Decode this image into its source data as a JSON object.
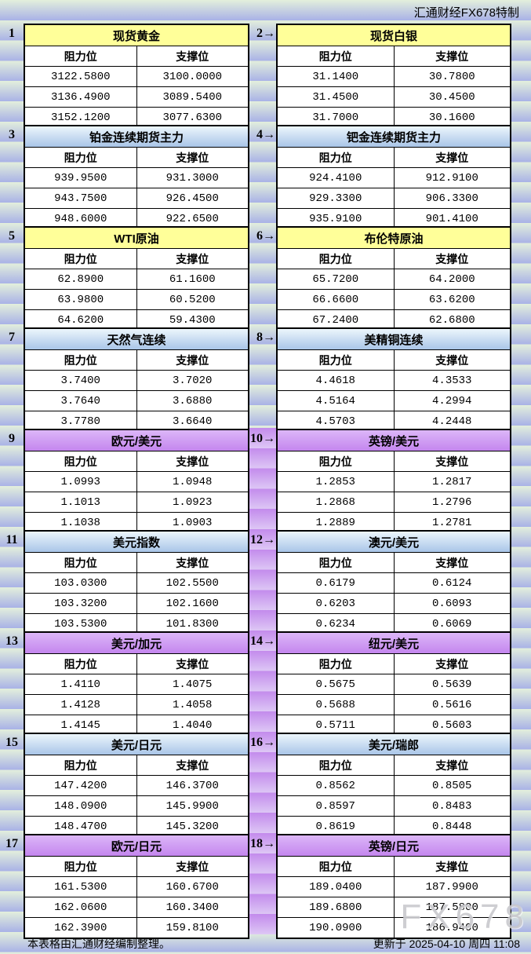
{
  "page": {
    "attribution": "汇通财经FX678特制",
    "footer_left": "本表格由汇通财经编制整理。",
    "footer_right": "更新于 2025-04-10 周四 11:08",
    "watermark": "FX678"
  },
  "headers": {
    "resistance": "阻力位",
    "support": "支撑位"
  },
  "colors": {
    "title_yellow": "#ffff99",
    "title_blue": "#aac6e8",
    "title_purple": "#c992f0",
    "stripe_green": "#e3efdc",
    "stripe_blue": "#a9b2e6",
    "stripe_purple_dark": "#c38bec",
    "stripe_purple_light": "#ddc7f5",
    "cell_bg": "#ffffff",
    "border": "#000000"
  },
  "tables": [
    {
      "num": "1",
      "title": "现货黄金",
      "theme": "yellow",
      "rows": [
        [
          "3122.5800",
          "3100.0000"
        ],
        [
          "3136.4900",
          "3089.5400"
        ],
        [
          "3152.1200",
          "3077.6300"
        ]
      ]
    },
    {
      "num": "2→",
      "title": "现货白银",
      "theme": "yellow",
      "rows": [
        [
          "31.1400",
          "30.7800"
        ],
        [
          "31.4500",
          "30.4500"
        ],
        [
          "31.7000",
          "30.1600"
        ]
      ]
    },
    {
      "num": "3",
      "title": "铂金连续期货主力",
      "theme": "blue",
      "rows": [
        [
          "939.9500",
          "931.3000"
        ],
        [
          "943.7500",
          "926.4500"
        ],
        [
          "948.6000",
          "922.6500"
        ]
      ]
    },
    {
      "num": "4→",
      "title": "钯金连续期货主力",
      "theme": "blue",
      "rows": [
        [
          "924.4100",
          "912.9100"
        ],
        [
          "929.3300",
          "906.3300"
        ],
        [
          "935.9100",
          "901.4100"
        ]
      ]
    },
    {
      "num": "5",
      "title": "WTI原油",
      "theme": "yellow",
      "rows": [
        [
          "62.8900",
          "61.1600"
        ],
        [
          "63.9800",
          "60.5200"
        ],
        [
          "64.6200",
          "59.4300"
        ]
      ]
    },
    {
      "num": "6→",
      "title": "布伦特原油",
      "theme": "yellow",
      "rows": [
        [
          "65.7200",
          "64.2000"
        ],
        [
          "66.6600",
          "63.6200"
        ],
        [
          "67.2400",
          "62.6800"
        ]
      ]
    },
    {
      "num": "7",
      "title": "天然气连续",
      "theme": "blue",
      "rows": [
        [
          "3.7400",
          "3.7020"
        ],
        [
          "3.7640",
          "3.6880"
        ],
        [
          "3.7780",
          "3.6640"
        ]
      ]
    },
    {
      "num": "8→",
      "title": "美精铜连续",
      "theme": "blue",
      "rows": [
        [
          "4.4618",
          "4.3533"
        ],
        [
          "4.5164",
          "4.2994"
        ],
        [
          "4.5703",
          "4.2448"
        ]
      ]
    },
    {
      "num": "9",
      "title": "欧元/美元",
      "theme": "purple",
      "rows": [
        [
          "1.0993",
          "1.0948"
        ],
        [
          "1.1013",
          "1.0923"
        ],
        [
          "1.1038",
          "1.0903"
        ]
      ]
    },
    {
      "num": "10→",
      "title": "英镑/美元",
      "theme": "purple",
      "rows": [
        [
          "1.2853",
          "1.2817"
        ],
        [
          "1.2868",
          "1.2796"
        ],
        [
          "1.2889",
          "1.2781"
        ]
      ]
    },
    {
      "num": "11",
      "title": "美元指数",
      "theme": "blue",
      "rows": [
        [
          "103.0300",
          "102.5500"
        ],
        [
          "103.3200",
          "102.1600"
        ],
        [
          "103.5300",
          "101.8300"
        ]
      ]
    },
    {
      "num": "12→",
      "title": "澳元/美元",
      "theme": "blue",
      "rows": [
        [
          "0.6179",
          "0.6124"
        ],
        [
          "0.6203",
          "0.6093"
        ],
        [
          "0.6234",
          "0.6069"
        ]
      ]
    },
    {
      "num": "13",
      "title": "美元/加元",
      "theme": "purple",
      "rows": [
        [
          "1.4110",
          "1.4075"
        ],
        [
          "1.4128",
          "1.4058"
        ],
        [
          "1.4145",
          "1.4040"
        ]
      ]
    },
    {
      "num": "14→",
      "title": "纽元/美元",
      "theme": "purple",
      "rows": [
        [
          "0.5675",
          "0.5639"
        ],
        [
          "0.5688",
          "0.5616"
        ],
        [
          "0.5711",
          "0.5603"
        ]
      ]
    },
    {
      "num": "15",
      "title": "美元/日元",
      "theme": "blue",
      "rows": [
        [
          "147.4200",
          "146.3700"
        ],
        [
          "148.0900",
          "145.9900"
        ],
        [
          "148.4700",
          "145.3200"
        ]
      ]
    },
    {
      "num": "16→",
      "title": "美元/瑞郎",
      "theme": "blue",
      "rows": [
        [
          "0.8562",
          "0.8505"
        ],
        [
          "0.8597",
          "0.8483"
        ],
        [
          "0.8619",
          "0.8448"
        ]
      ]
    },
    {
      "num": "17",
      "title": "欧元/日元",
      "theme": "purple",
      "rows": [
        [
          "161.5300",
          "160.6700"
        ],
        [
          "162.0600",
          "160.3400"
        ],
        [
          "162.3900",
          "159.8100"
        ]
      ]
    },
    {
      "num": "18→",
      "title": "英镑/日元",
      "theme": "purple",
      "rows": [
        [
          "189.0400",
          "187.9900"
        ],
        [
          "189.6800",
          "187.5800"
        ],
        [
          "190.0900",
          "186.9400"
        ]
      ]
    }
  ]
}
